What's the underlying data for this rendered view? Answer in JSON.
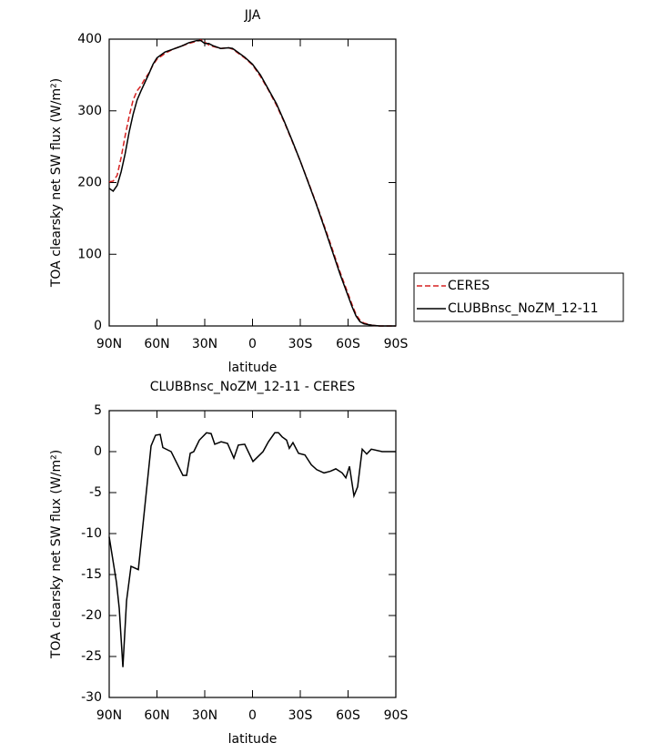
{
  "chart_data": [
    {
      "type": "line",
      "title": "JJA",
      "xlabel": "latitude",
      "ylabel": "TOA clearsky net SW flux (W/m²)",
      "x": [
        90,
        87.5,
        85,
        82.5,
        80,
        77.5,
        75,
        72.5,
        70,
        67.5,
        65,
        62.5,
        60,
        55,
        50,
        45,
        40,
        35,
        32.5,
        30,
        27.5,
        25,
        20,
        15,
        12.5,
        10,
        5,
        0,
        -5,
        -10,
        -15,
        -20,
        -25,
        -30,
        -35,
        -40,
        -45,
        -50,
        -55,
        -60,
        -62.5,
        -65,
        -67.5,
        -70,
        -75,
        -80,
        -85,
        -90
      ],
      "series": [
        {
          "name": "CERES",
          "color": "#d62020",
          "dash": true,
          "values": [
            201,
            202,
            210,
            235,
            265,
            292,
            315,
            328,
            335,
            345,
            353,
            364,
            372,
            380,
            386,
            390,
            394,
            397,
            399,
            396,
            392,
            390,
            387,
            388,
            386,
            382,
            374,
            364,
            348,
            329,
            308,
            284,
            257,
            230,
            201,
            171,
            140,
            108,
            75,
            45,
            30,
            16,
            8,
            4,
            1,
            0,
            0,
            0
          ]
        },
        {
          "name": "CLUBBnsc_NoZM_12-11",
          "color": "#000000",
          "dash": false,
          "values": [
            192,
            188,
            196,
            215,
            240,
            270,
            295,
            315,
            328,
            340,
            352,
            365,
            374,
            382,
            386,
            390,
            395,
            398,
            398,
            394,
            394,
            391,
            387,
            388,
            387,
            383,
            375,
            365,
            350,
            330,
            310,
            285,
            258,
            230,
            200,
            170,
            138,
            105,
            72,
            42,
            27,
            14,
            6,
            3,
            1,
            0,
            0,
            0
          ]
        }
      ],
      "xlim": [
        90,
        -90
      ],
      "xticks": [
        {
          "value": 90,
          "label": "90N"
        },
        {
          "value": 60,
          "label": "60N"
        },
        {
          "value": 30,
          "label": "30N"
        },
        0,
        {
          "value": -30,
          "label": "30S"
        },
        {
          "value": -60,
          "label": "60S"
        },
        {
          "value": -90,
          "label": "90S"
        }
      ],
      "ylim": [
        0,
        400
      ],
      "yticks": [
        0,
        100,
        200,
        300,
        400
      ]
    },
    {
      "type": "line",
      "title": "CLUBBnsc_NoZM_12-11 - CERES",
      "xlabel": "latitude",
      "ylabel": "TOA clearsky net SW flux (W/m²)",
      "x": [
        90,
        85.4,
        83.7,
        81.4,
        79.1,
        76.3,
        71.7,
        63.7,
        60.9,
        58,
        56.3,
        51.1,
        43.7,
        41.4,
        39.1,
        36.9,
        33.4,
        28.9,
        26,
        23.7,
        19.7,
        15.7,
        11.7,
        8.9,
        4.9,
        -0.3,
        -6.6,
        -10,
        -14,
        -16.3,
        -18.6,
        -21.4,
        -23.1,
        -25.4,
        -28.9,
        -32.9,
        -36.9,
        -40.3,
        -44.9,
        -48.9,
        -52.3,
        -56.3,
        -58.6,
        -60.9,
        -63.7,
        -66,
        -68.9,
        -71.7,
        -74.6,
        -81.4,
        -90
      ],
      "values": [
        -10.4,
        -16,
        -19.1,
        -26.3,
        -18.2,
        -14,
        -14.4,
        0.7,
        2,
        2.1,
        0.5,
        0,
        -2.9,
        -2.9,
        -0.2,
        0,
        1.4,
        2.3,
        2.2,
        0.9,
        1.2,
        1,
        -0.8,
        0.8,
        0.9,
        -1.2,
        0,
        1.2,
        2.3,
        2.3,
        1.8,
        1.4,
        0.4,
        1.1,
        -0.2,
        -0.4,
        -1.6,
        -2.2,
        -2.6,
        -2.4,
        -2.1,
        -2.6,
        -3.2,
        -1.8,
        -5.4,
        -4.3,
        0.3,
        -0.3,
        0.3,
        0,
        0
      ],
      "color": "#000000",
      "xlim": [
        90,
        -90
      ],
      "xticks": [
        {
          "value": 90,
          "label": "90N"
        },
        {
          "value": 60,
          "label": "60N"
        },
        {
          "value": 30,
          "label": "30N"
        },
        0,
        {
          "value": -30,
          "label": "30S"
        },
        {
          "value": -60,
          "label": "60S"
        },
        {
          "value": -90,
          "label": "90S"
        }
      ],
      "ylim": [
        -30,
        5
      ],
      "yticks": [
        5,
        0,
        -5,
        -10,
        -15,
        -20,
        -25,
        -30
      ]
    }
  ]
}
